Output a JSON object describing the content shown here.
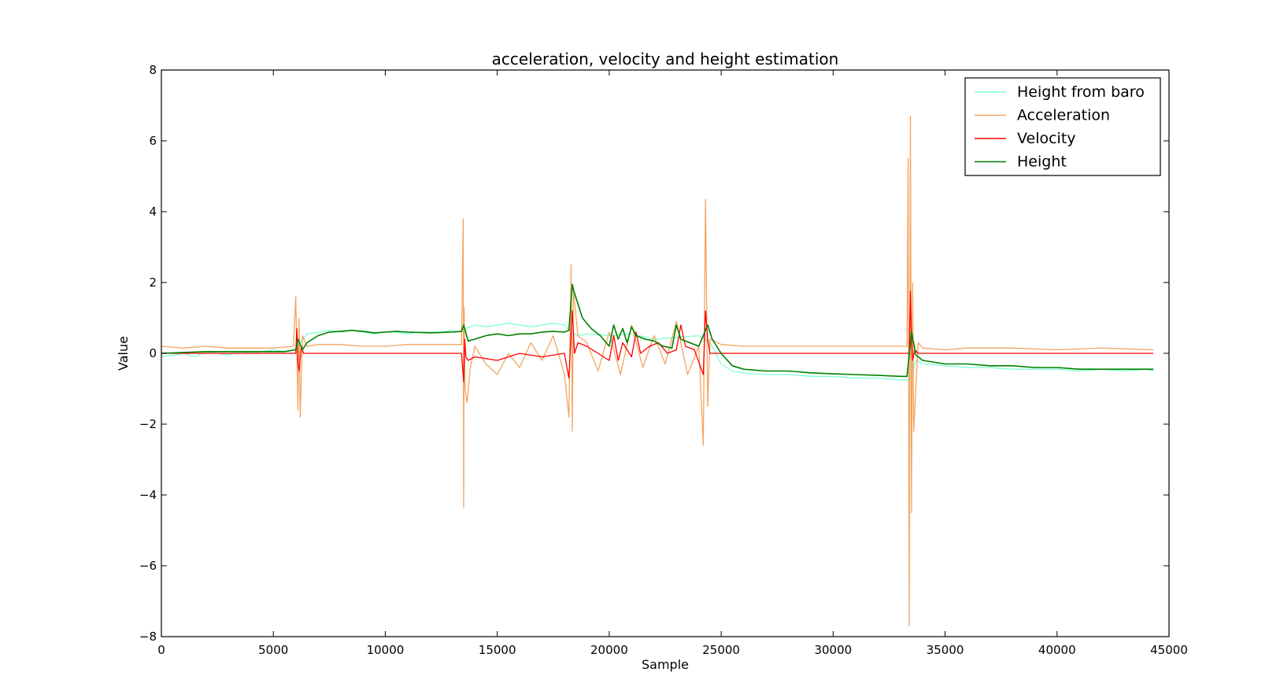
{
  "chart_data": {
    "type": "line",
    "title": "acceleration, velocity and height estimation",
    "xlabel": "Sample",
    "ylabel": "Value",
    "xlim": [
      0,
      45000
    ],
    "ylim": [
      -8,
      8
    ],
    "xticks": [
      0,
      5000,
      10000,
      15000,
      20000,
      25000,
      30000,
      35000,
      40000,
      45000
    ],
    "xtick_labels": [
      "0",
      "5000",
      "10000",
      "15000",
      "20000",
      "25000",
      "30000",
      "35000",
      "40000",
      "45000"
    ],
    "yticks": [
      -8,
      -6,
      -4,
      -2,
      0,
      2,
      4,
      6,
      8
    ],
    "ytick_labels": [
      "−8",
      "−6",
      "−4",
      "−2",
      "0",
      "2",
      "4",
      "6",
      "8"
    ],
    "grid": false,
    "legend_position": "top-right",
    "series": [
      {
        "name": "Height from baro",
        "color": "#7fffd4",
        "x": [
          0,
          500,
          1000,
          1500,
          2000,
          2500,
          3000,
          3500,
          4000,
          4500,
          5000,
          5500,
          6000,
          6200,
          6500,
          7000,
          7500,
          8000,
          8500,
          9000,
          9500,
          10000,
          10500,
          11000,
          11500,
          12000,
          12500,
          13000,
          13400,
          13600,
          14000,
          14500,
          15000,
          15500,
          16000,
          16500,
          17000,
          17500,
          18000,
          18300,
          18600,
          19000,
          20000,
          21000,
          22000,
          23000,
          24000,
          24500,
          25000,
          25500,
          26000,
          27000,
          28000,
          29000,
          30000,
          31000,
          32000,
          33000,
          33400,
          33700,
          34000,
          35000,
          36000,
          37000,
          38000,
          39000,
          40000,
          41000,
          42000,
          43000,
          44000,
          44300
        ],
        "y": [
          -0.1,
          -0.05,
          0.0,
          -0.1,
          0.05,
          0.0,
          -0.05,
          0.05,
          0.0,
          0.05,
          0.1,
          0.05,
          0.1,
          0.3,
          0.55,
          0.6,
          0.65,
          0.6,
          0.65,
          0.6,
          0.55,
          0.6,
          0.6,
          0.55,
          0.6,
          0.6,
          0.6,
          0.65,
          0.6,
          0.7,
          0.8,
          0.75,
          0.8,
          0.85,
          0.8,
          0.75,
          0.8,
          0.85,
          0.8,
          0.6,
          0.5,
          0.55,
          0.5,
          0.55,
          0.4,
          0.45,
          0.5,
          0.3,
          -0.3,
          -0.5,
          -0.55,
          -0.6,
          -0.6,
          -0.65,
          -0.65,
          -0.7,
          -0.7,
          -0.75,
          -0.75,
          -0.2,
          -0.3,
          -0.35,
          -0.4,
          -0.4,
          -0.45,
          -0.45,
          -0.45,
          -0.5,
          -0.45,
          -0.5,
          -0.45,
          -0.5
        ]
      },
      {
        "name": "Acceleration",
        "color": "#f4a460",
        "x": [
          0,
          1000,
          2000,
          3000,
          4000,
          5000,
          5900,
          6000,
          6100,
          6150,
          6200,
          6300,
          6500,
          7000,
          8000,
          9000,
          10000,
          11000,
          12000,
          13000,
          13400,
          13480,
          13500,
          13520,
          13560,
          13650,
          13800,
          14000,
          14500,
          15000,
          15500,
          16000,
          16500,
          17000,
          17500,
          18000,
          18200,
          18300,
          18350,
          18400,
          18600,
          19000,
          19500,
          20000,
          20500,
          21000,
          21500,
          22000,
          22500,
          23000,
          23500,
          24000,
          24200,
          24300,
          24400,
          24500,
          25000,
          26000,
          28000,
          30000,
          31000,
          31500,
          33000,
          33300,
          33350,
          33400,
          33450,
          33500,
          33550,
          33600,
          33800,
          34000,
          35000,
          36000,
          38000,
          40000,
          42000,
          44300
        ],
        "y": [
          0.2,
          0.15,
          0.2,
          0.15,
          0.15,
          0.15,
          0.2,
          1.6,
          -1.6,
          1.0,
          -1.8,
          0.5,
          0.2,
          0.25,
          0.25,
          0.2,
          0.2,
          0.25,
          0.25,
          0.25,
          0.25,
          3.8,
          -4.35,
          1.3,
          -1.0,
          -1.4,
          -0.4,
          0.2,
          -0.3,
          -0.6,
          0.0,
          -0.4,
          0.3,
          -0.2,
          0.5,
          -0.6,
          -1.8,
          2.5,
          -2.2,
          1.8,
          0.5,
          0.3,
          -0.5,
          0.6,
          -0.6,
          0.8,
          -0.4,
          0.5,
          -0.3,
          0.9,
          -0.6,
          0.2,
          -2.6,
          4.35,
          -1.5,
          0.4,
          0.25,
          0.2,
          0.2,
          0.2,
          0.2,
          0.2,
          0.2,
          0.2,
          5.5,
          -7.7,
          6.7,
          -4.5,
          2.0,
          -2.2,
          0.3,
          0.15,
          0.1,
          0.15,
          0.15,
          0.1,
          0.15,
          0.1
        ]
      },
      {
        "name": "Velocity",
        "color": "#ff0000",
        "x": [
          0,
          6000,
          6050,
          6100,
          6150,
          6250,
          6350,
          13400,
          13500,
          13550,
          13600,
          13700,
          14000,
          15000,
          16000,
          17000,
          18000,
          18200,
          18300,
          18350,
          18450,
          18600,
          19000,
          19500,
          20000,
          20200,
          20400,
          20600,
          20800,
          21000,
          21200,
          21400,
          21800,
          22200,
          22600,
          23000,
          23200,
          23400,
          23800,
          24200,
          24300,
          24400,
          24500,
          24600,
          33300,
          33400,
          33450,
          33500,
          33550,
          33650,
          33800,
          44300
        ],
        "y": [
          0.0,
          0.0,
          0.7,
          -0.3,
          -0.5,
          0.2,
          0.0,
          0.0,
          -0.8,
          0.4,
          -0.1,
          -0.2,
          -0.1,
          -0.2,
          0.0,
          -0.1,
          0.0,
          -0.7,
          0.6,
          1.2,
          0.0,
          0.3,
          0.2,
          0.0,
          -0.2,
          0.5,
          -0.2,
          0.3,
          0.1,
          -0.1,
          0.6,
          0.0,
          0.2,
          0.3,
          0.0,
          0.1,
          0.8,
          0.2,
          0.1,
          -0.6,
          1.2,
          0.4,
          0.0,
          0.0,
          0.0,
          0.0,
          1.75,
          0.4,
          -0.2,
          0.1,
          0.0,
          0.0
        ]
      },
      {
        "name": "Height",
        "color": "#008000",
        "x": [
          0,
          2000,
          4000,
          5500,
          6000,
          6100,
          6300,
          6500,
          7000,
          7500,
          8000,
          8500,
          9000,
          9500,
          10000,
          10500,
          11000,
          12000,
          13000,
          13400,
          13500,
          13700,
          14000,
          14500,
          15000,
          15500,
          16000,
          16500,
          17000,
          17500,
          18000,
          18200,
          18350,
          18400,
          18800,
          19200,
          19600,
          20000,
          20200,
          20400,
          20600,
          20800,
          21000,
          21200,
          21600,
          22000,
          22400,
          22800,
          23000,
          23200,
          23600,
          24000,
          24400,
          24600,
          25000,
          25500,
          26000,
          27000,
          28000,
          29000,
          30000,
          31000,
          32000,
          33000,
          33300,
          33500,
          33700,
          34000,
          35000,
          36000,
          37000,
          38000,
          39000,
          40000,
          41000,
          42000,
          43000,
          44300
        ],
        "y": [
          0.0,
          0.05,
          0.05,
          0.05,
          0.1,
          0.4,
          0.1,
          0.3,
          0.5,
          0.6,
          0.62,
          0.65,
          0.62,
          0.58,
          0.6,
          0.62,
          0.6,
          0.58,
          0.6,
          0.62,
          0.8,
          0.35,
          0.4,
          0.5,
          0.55,
          0.5,
          0.55,
          0.55,
          0.6,
          0.62,
          0.6,
          0.65,
          1.95,
          1.8,
          1.0,
          0.7,
          0.5,
          0.2,
          0.8,
          0.4,
          0.7,
          0.3,
          0.75,
          0.5,
          0.4,
          0.35,
          0.2,
          0.15,
          0.8,
          0.4,
          0.3,
          0.2,
          0.8,
          0.4,
          0.0,
          -0.35,
          -0.45,
          -0.5,
          -0.5,
          -0.55,
          -0.58,
          -0.6,
          -0.62,
          -0.65,
          -0.65,
          0.6,
          -0.05,
          -0.2,
          -0.3,
          -0.3,
          -0.35,
          -0.35,
          -0.4,
          -0.4,
          -0.45,
          -0.45,
          -0.45,
          -0.45
        ]
      }
    ]
  }
}
